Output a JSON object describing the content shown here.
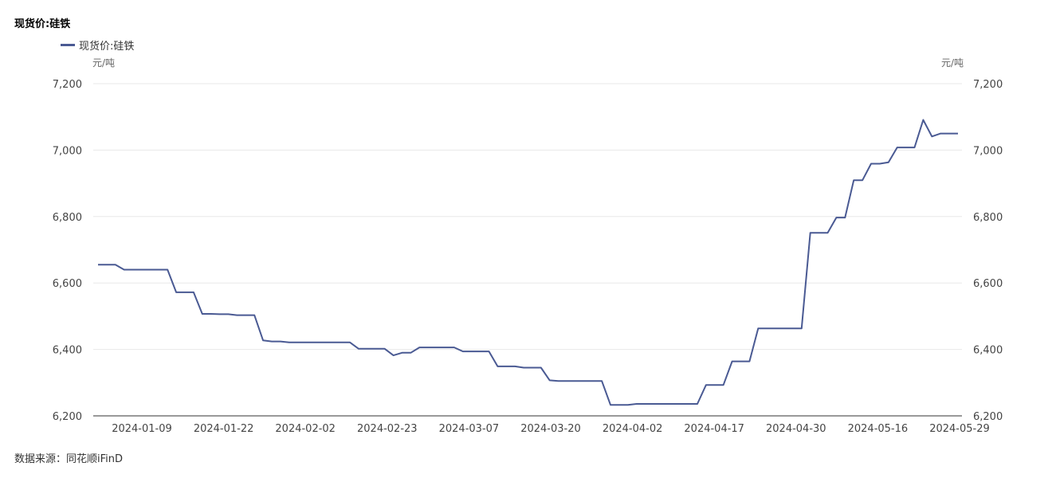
{
  "header": {
    "title": "现货价:硅铁"
  },
  "footer": {
    "source": "数据来源：同花顺iFinD"
  },
  "colors": {
    "series": "#4a5a93",
    "grid": "#e8e8e8",
    "axis": "#333333"
  },
  "chart_data": {
    "type": "line",
    "title": "现货价:硅铁",
    "ylabel_left": "元/吨",
    "ylabel_right": "元/吨",
    "ylim": [
      6200,
      7200
    ],
    "yticks": [
      6200,
      6400,
      6600,
      6800,
      7000,
      7200
    ],
    "ytick_labels": [
      "6,200",
      "6,400",
      "6,600",
      "6,800",
      "7,000",
      "7,200"
    ],
    "xtick_labels": [
      "2024-01-09",
      "2024-01-22",
      "2024-02-02",
      "2024-02-23",
      "2024-03-07",
      "2024-03-20",
      "2024-04-02",
      "2024-04-17",
      "2024-04-30",
      "2024-05-16",
      "2024-05-29"
    ],
    "grid": true,
    "legend": "top-left",
    "series": [
      {
        "name": "现货价:硅铁",
        "values": [
          6655,
          6655,
          6655,
          6640,
          6640,
          6640,
          6640,
          6640,
          6640,
          6572,
          6572,
          6572,
          6507,
          6507,
          6506,
          6506,
          6503,
          6503,
          6503,
          6427,
          6424,
          6424,
          6421,
          6421,
          6421,
          6421,
          6421,
          6421,
          6421,
          6421,
          6402,
          6402,
          6402,
          6402,
          6382,
          6390,
          6390,
          6406,
          6406,
          6406,
          6406,
          6406,
          6394,
          6394,
          6394,
          6394,
          6349,
          6349,
          6349,
          6345,
          6345,
          6345,
          6307,
          6305,
          6305,
          6305,
          6305,
          6305,
          6305,
          6233,
          6233,
          6233,
          6236,
          6236,
          6236,
          6236,
          6236,
          6236,
          6236,
          6236,
          6293,
          6293,
          6293,
          6364,
          6364,
          6364,
          6463,
          6463,
          6463,
          6463,
          6463,
          6463,
          6751,
          6751,
          6751,
          6797,
          6797,
          6909,
          6909,
          6959,
          6959,
          6963,
          7008,
          7008,
          7008,
          7091,
          7041,
          7050,
          7050,
          7050
        ]
      }
    ]
  }
}
